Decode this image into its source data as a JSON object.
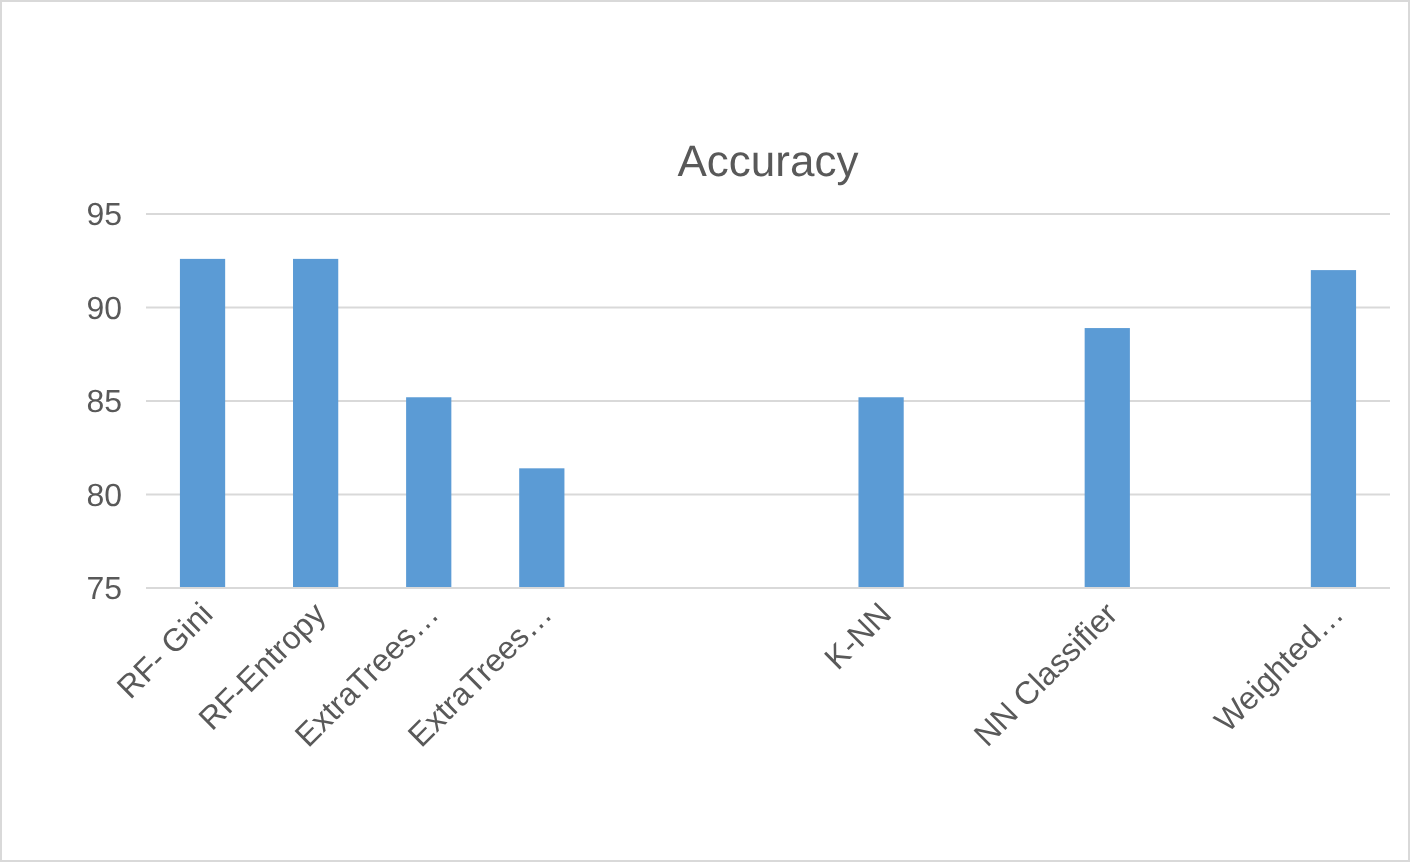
{
  "chart_data": {
    "type": "bar",
    "title": "Accuracy",
    "categories": [
      "RF- Gini",
      "RF-Entropy",
      "ExtraTrees…",
      "ExtraTrees…",
      null,
      null,
      "K-NN",
      null,
      "NN Classifier",
      null,
      "Weighted…"
    ],
    "values": [
      92.6,
      92.6,
      85.2,
      81.4,
      null,
      null,
      85.2,
      null,
      88.9,
      null,
      92.0
    ],
    "color": "#5b9bd5",
    "ylim": [
      75,
      95
    ],
    "yticks": [
      75,
      80,
      85,
      90,
      95
    ],
    "grid": "y"
  }
}
